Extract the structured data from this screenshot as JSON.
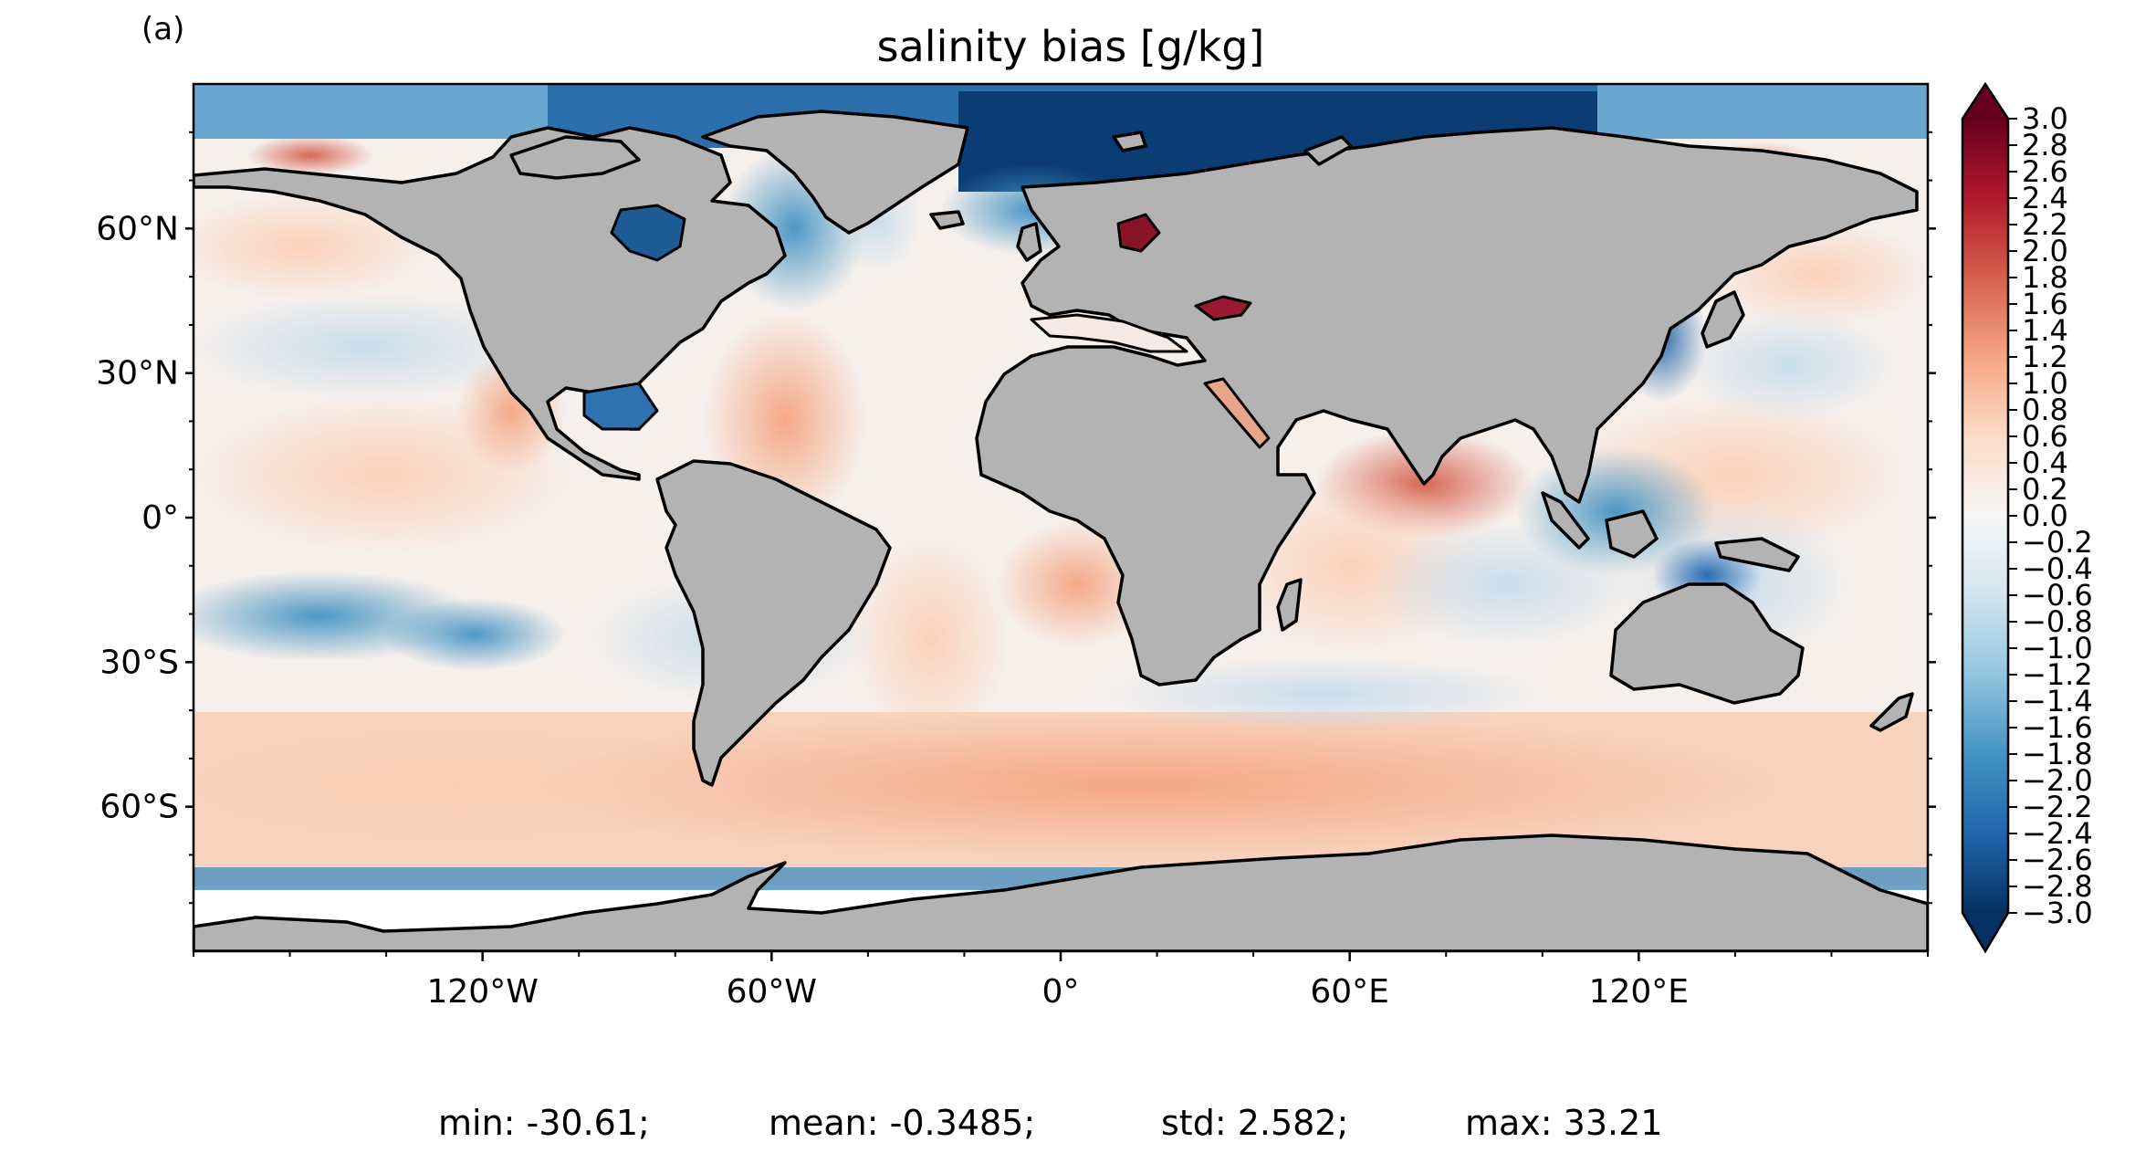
{
  "panel_label": "(a)",
  "title": "salinity bias [g/kg]",
  "map": {
    "projection": "PlateCarree",
    "extent_lon": [
      -180,
      180
    ],
    "extent_lat": [
      -90,
      90
    ],
    "land_color": "#b3b3b3",
    "coastline_color": "#000000",
    "lat_ticks": [
      "60°N",
      "30°N",
      "0°",
      "30°S",
      "60°S"
    ],
    "lon_ticks": [
      "120°W",
      "60°W",
      "0°",
      "60°E",
      "120°E"
    ]
  },
  "colorbar": {
    "colormap": "RdBu_r",
    "vmin": -3.0,
    "vmax": 3.0,
    "extend": "both",
    "tick_labels": [
      "3.0",
      "2.8",
      "2.6",
      "2.4",
      "2.2",
      "2.0",
      "1.8",
      "1.6",
      "1.4",
      "1.2",
      "1.0",
      "0.8",
      "0.6",
      "0.4",
      "0.2",
      "0.0",
      "−0.2",
      "−0.4",
      "−0.6",
      "−0.8",
      "−1.0",
      "−1.2",
      "−1.4",
      "−1.6",
      "−1.8",
      "−2.0",
      "−2.2",
      "−2.4",
      "−2.6",
      "−2.8",
      "−3.0"
    ]
  },
  "stats": {
    "min": "min: -30.61;",
    "mean": "mean: -0.3485;",
    "std": "std: 2.582;",
    "max": "max: 33.21"
  }
}
